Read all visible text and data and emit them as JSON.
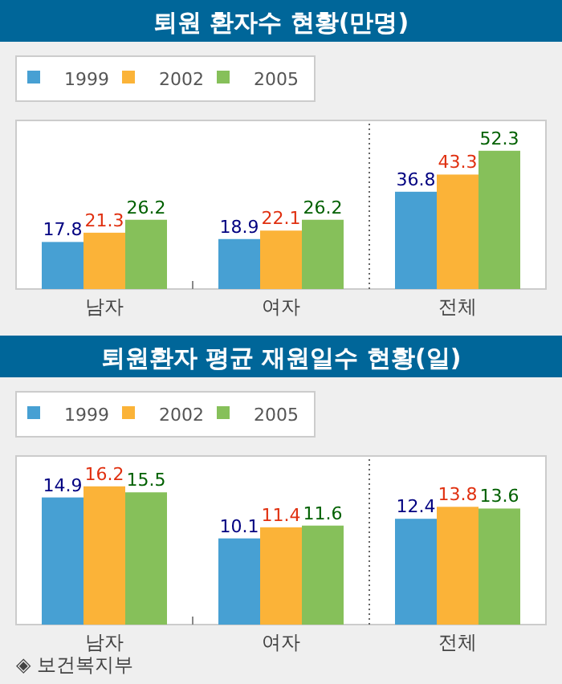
{
  "chart_data": [
    {
      "type": "bar",
      "title": "퇴원 환자수 현황(만명)",
      "categories": [
        "남자",
        "여자",
        "전체"
      ],
      "data_labels": true,
      "legend": "top left",
      "series": [
        {
          "name": "1999",
          "color": "#47a0d3",
          "values": [
            17.8,
            18.9,
            36.8
          ]
        },
        {
          "name": "2002",
          "color": "#fbb338",
          "values": [
            21.3,
            22.1,
            43.3
          ]
        },
        {
          "name": "2005",
          "color": "#86c05a",
          "values": [
            26.2,
            26.2,
            52.3
          ]
        }
      ]
    },
    {
      "type": "bar",
      "title": "퇴원환자 평균 재원일수 현황(일)",
      "categories": [
        "남자",
        "여자",
        "전체"
      ],
      "data_labels": true,
      "legend": "top left",
      "annotations": [
        "◈ 보건복지부"
      ],
      "series": [
        {
          "name": "1999",
          "color": "#47a0d3",
          "values": [
            14.9,
            10.1,
            12.4
          ]
        },
        {
          "name": "2002",
          "color": "#fbb338",
          "values": [
            16.2,
            11.4,
            13.8
          ]
        },
        {
          "name": "2005",
          "color": "#86c05a",
          "values": [
            15.5,
            11.6,
            13.6
          ]
        }
      ]
    }
  ]
}
